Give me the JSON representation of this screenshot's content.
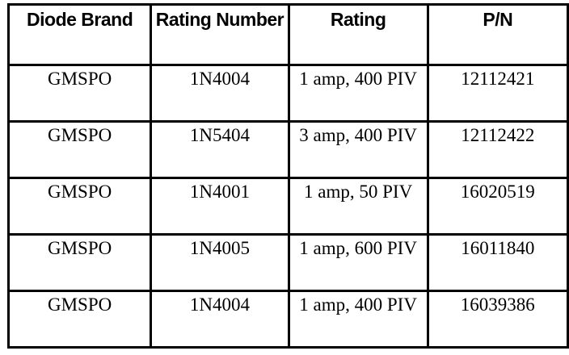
{
  "table": {
    "headers": [
      "Diode Brand",
      "Rating Number",
      "Rating",
      "P/N"
    ],
    "rows": [
      {
        "brand": "GMSPO",
        "number": "1N4004",
        "rating": "1 amp, 400 PIV",
        "pn": "12112421"
      },
      {
        "brand": "GMSPO",
        "number": "1N5404",
        "rating": "3 amp, 400 PIV",
        "pn": "12112422"
      },
      {
        "brand": "GMSPO",
        "number": "1N4001",
        "rating": "1 amp, 50 PIV",
        "pn": "16020519"
      },
      {
        "brand": "GMSPO",
        "number": "1N4005",
        "rating": "1 amp, 600 PIV",
        "pn": "16011840"
      },
      {
        "brand": "GMSPO",
        "number": "1N4004",
        "rating": "1 amp, 400 PIV",
        "pn": "16039386"
      }
    ]
  }
}
